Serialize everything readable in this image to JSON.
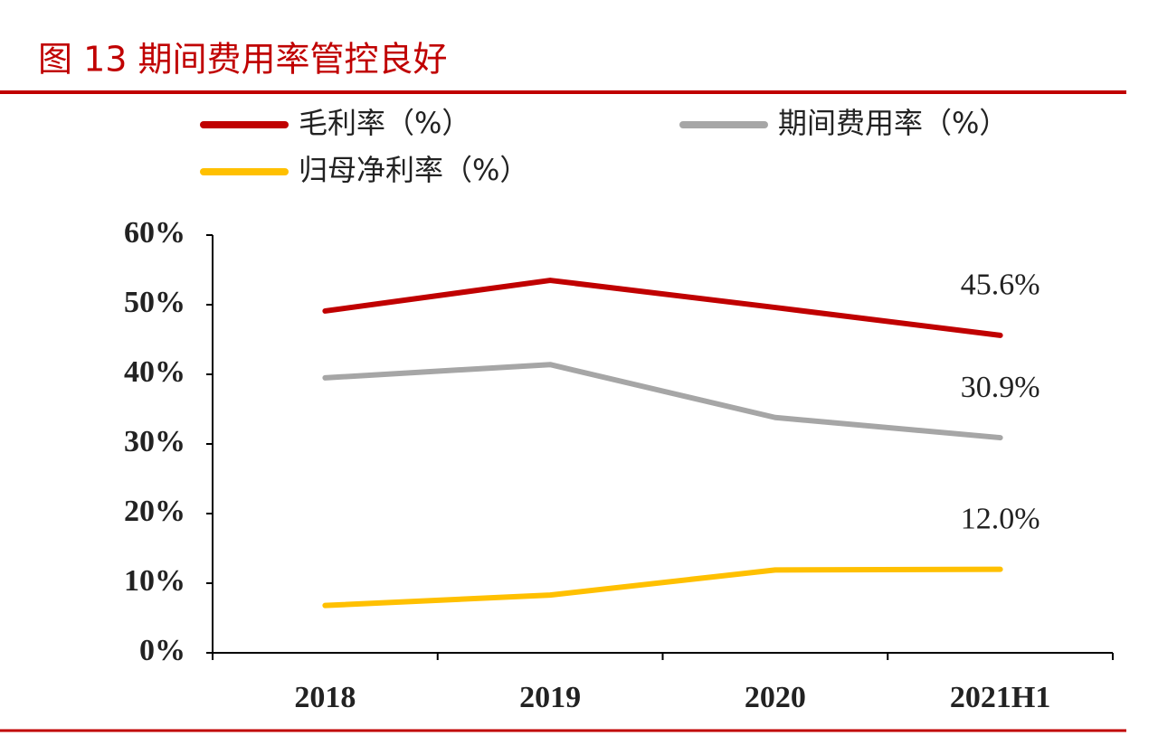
{
  "chart_data": {
    "type": "line",
    "title": "图 13 期间费用率管控良好",
    "categories": [
      "2018",
      "2019",
      "2020",
      "2021H1"
    ],
    "series": [
      {
        "name": "毛利率（%）",
        "color": "#c00000",
        "values": [
          49.1,
          53.5,
          49.6,
          45.6
        ],
        "value_labels": [
          null,
          null,
          null,
          "45.6%"
        ]
      },
      {
        "name": "期间费用率（%）",
        "color": "#a6a6a6",
        "values": [
          39.5,
          41.4,
          33.8,
          30.9
        ],
        "value_labels": [
          null,
          null,
          null,
          "30.9%"
        ]
      },
      {
        "name": "归母净利率（%）",
        "color": "#ffc000",
        "values": [
          6.8,
          8.3,
          11.9,
          12.0
        ],
        "value_labels": [
          null,
          null,
          null,
          "12.0%"
        ]
      }
    ],
    "ylim": [
      0,
      60
    ],
    "yticks": [
      {
        "value": 0,
        "label": "0%"
      },
      {
        "value": 10,
        "label": "10%"
      },
      {
        "value": 20,
        "label": "20%"
      },
      {
        "value": 30,
        "label": "30%"
      },
      {
        "value": 40,
        "label": "40%"
      },
      {
        "value": 50,
        "label": "50%"
      },
      {
        "value": 60,
        "label": "60%"
      }
    ],
    "grid": false
  }
}
